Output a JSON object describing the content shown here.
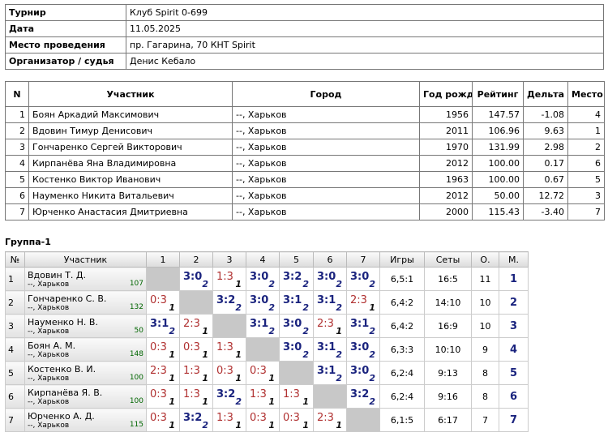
{
  "info": {
    "rows": [
      [
        "Турнир",
        "Клуб Spirit 0-699"
      ],
      [
        "Дата",
        "11.05.2025"
      ],
      [
        "Место проведения",
        "пр. Гагарина, 70 КНТ Spirit"
      ],
      [
        "Организатор / судья",
        "Денис Кебало"
      ]
    ]
  },
  "players": {
    "header": [
      "N",
      "Участник",
      "Город",
      "Год рожд.",
      "Рейтинг",
      "Дельта",
      "Место"
    ],
    "rows": [
      [
        "1",
        "Боян Аркадий Максимович",
        "--, Харьков",
        "1956",
        "147.57",
        "-1.08",
        "4"
      ],
      [
        "2",
        "Вдовин Тимур Денисович",
        "--, Харьков",
        "2011",
        "106.96",
        "9.63",
        "1"
      ],
      [
        "3",
        "Гончаренко Сергей Викторович",
        "--, Харьков",
        "1970",
        "131.99",
        "2.98",
        "2"
      ],
      [
        "4",
        "Кирпанёва Яна Владимировна",
        "--, Харьков",
        "2012",
        "100.00",
        "0.17",
        "6"
      ],
      [
        "5",
        "Костенко Виктор Иванович",
        "--, Харьков",
        "1963",
        "100.00",
        "0.67",
        "5"
      ],
      [
        "6",
        "Науменко Никита Витальевич",
        "--, Харьков",
        "2012",
        "50.00",
        "12.72",
        "3"
      ],
      [
        "7",
        "Юрченко Анастасия Дмитриевна",
        "--, Харьков",
        "2000",
        "115.43",
        "-3.40",
        "7"
      ]
    ]
  },
  "group": {
    "title": "Группа-1",
    "header": [
      "№",
      "Участник",
      "1",
      "2",
      "3",
      "4",
      "5",
      "6",
      "7",
      "Игры",
      "Сеты",
      "О.",
      "М."
    ],
    "rows": [
      {
        "n": "1",
        "name": "Вдовин Т. Д.",
        "city": "--, Харьков",
        "rating": "107",
        "results": [
          null,
          {
            "score": "3:0",
            "points": 2
          },
          {
            "score": "1:3",
            "points": 1
          },
          {
            "score": "3:0",
            "points": 2
          },
          {
            "score": "3:2",
            "points": 2
          },
          {
            "score": "3:0",
            "points": 2
          },
          {
            "score": "3:0",
            "points": 2
          }
        ],
        "games": "6,5:1",
        "sets": "16:5",
        "points": "11",
        "place": "1"
      },
      {
        "n": "2",
        "name": "Гончаренко С. В.",
        "city": "--, Харьков",
        "rating": "132",
        "results": [
          {
            "score": "0:3",
            "points": 1
          },
          null,
          {
            "score": "3:2",
            "points": 2
          },
          {
            "score": "3:0",
            "points": 2
          },
          {
            "score": "3:1",
            "points": 2
          },
          {
            "score": "3:1",
            "points": 2
          },
          {
            "score": "2:3",
            "points": 1
          }
        ],
        "games": "6,4:2",
        "sets": "14:10",
        "points": "10",
        "place": "2"
      },
      {
        "n": "3",
        "name": "Науменко Н. В.",
        "city": "--, Харьков",
        "rating": "50",
        "results": [
          {
            "score": "3:1",
            "points": 2
          },
          {
            "score": "2:3",
            "points": 1
          },
          null,
          {
            "score": "3:1",
            "points": 2
          },
          {
            "score": "3:0",
            "points": 2
          },
          {
            "score": "2:3",
            "points": 1
          },
          {
            "score": "3:1",
            "points": 2
          }
        ],
        "games": "6,4:2",
        "sets": "16:9",
        "points": "10",
        "place": "3"
      },
      {
        "n": "4",
        "name": "Боян А. М.",
        "city": "--, Харьков",
        "rating": "148",
        "results": [
          {
            "score": "0:3",
            "points": 1
          },
          {
            "score": "0:3",
            "points": 1
          },
          {
            "score": "1:3",
            "points": 1
          },
          null,
          {
            "score": "3:0",
            "points": 2
          },
          {
            "score": "3:1",
            "points": 2
          },
          {
            "score": "3:0",
            "points": 2
          }
        ],
        "games": "6,3:3",
        "sets": "10:10",
        "points": "9",
        "place": "4"
      },
      {
        "n": "5",
        "name": "Костенко В. И.",
        "city": "--, Харьков",
        "rating": "100",
        "results": [
          {
            "score": "2:3",
            "points": 1
          },
          {
            "score": "1:3",
            "points": 1
          },
          {
            "score": "0:3",
            "points": 1
          },
          {
            "score": "0:3",
            "points": 1
          },
          null,
          {
            "score": "3:1",
            "points": 2
          },
          {
            "score": "3:0",
            "points": 2
          }
        ],
        "games": "6,2:4",
        "sets": "9:13",
        "points": "8",
        "place": "5"
      },
      {
        "n": "6",
        "name": "Кирпанёва Я. В.",
        "city": "--, Харьков",
        "rating": "100",
        "results": [
          {
            "score": "0:3",
            "points": 1
          },
          {
            "score": "1:3",
            "points": 1
          },
          {
            "score": "3:2",
            "points": 2
          },
          {
            "score": "1:3",
            "points": 1
          },
          {
            "score": "1:3",
            "points": 1
          },
          null,
          {
            "score": "3:2",
            "points": 2
          }
        ],
        "games": "6,2:4",
        "sets": "9:16",
        "points": "8",
        "place": "6"
      },
      {
        "n": "7",
        "name": "Юрченко А. Д.",
        "city": "--, Харьков",
        "rating": "115",
        "results": [
          {
            "score": "0:3",
            "points": 1
          },
          {
            "score": "3:2",
            "points": 2
          },
          {
            "score": "1:3",
            "points": 1
          },
          {
            "score": "0:3",
            "points": 1
          },
          {
            "score": "0:3",
            "points": 1
          },
          {
            "score": "2:3",
            "points": 1
          },
          null
        ],
        "games": "6,1:5",
        "sets": "6:17",
        "points": "7",
        "place": "7"
      }
    ]
  }
}
